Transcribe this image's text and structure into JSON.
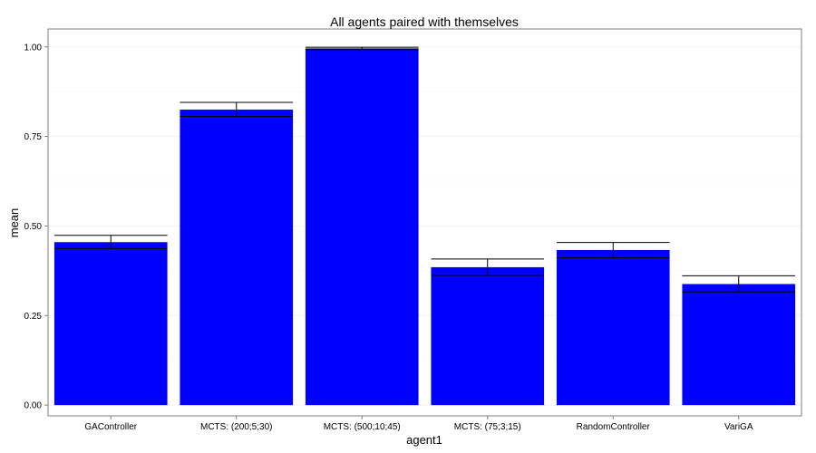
{
  "chart_data": {
    "type": "bar",
    "title": "All agents paired with themselves",
    "xlabel": "agent1",
    "ylabel": "mean",
    "categories": [
      "GAController",
      "MCTS: (200;5;30)",
      "MCTS: (500;10;45)",
      "MCTS: (75;3;15)",
      "RandomController",
      "VariGA"
    ],
    "values": [
      0.455,
      0.825,
      0.996,
      0.385,
      0.433,
      0.338
    ],
    "error_bars": {
      "lower": [
        0.437,
        0.806,
        0.992,
        0.362,
        0.411,
        0.316
      ],
      "upper": [
        0.474,
        0.845,
        0.999,
        0.408,
        0.454,
        0.361
      ]
    },
    "ylim": [
      -0.03,
      1.05
    ],
    "yticks": [
      0,
      0.25,
      0.5,
      0.75,
      1.0
    ],
    "ytick_labels": [
      "0.00",
      "0.25",
      "0.50",
      "0.75",
      "1.00"
    ],
    "grid": true,
    "bar_color": "#0000ff",
    "gridline_color": "#f2f2f2",
    "panel_border_color": "#7f7f7f"
  }
}
